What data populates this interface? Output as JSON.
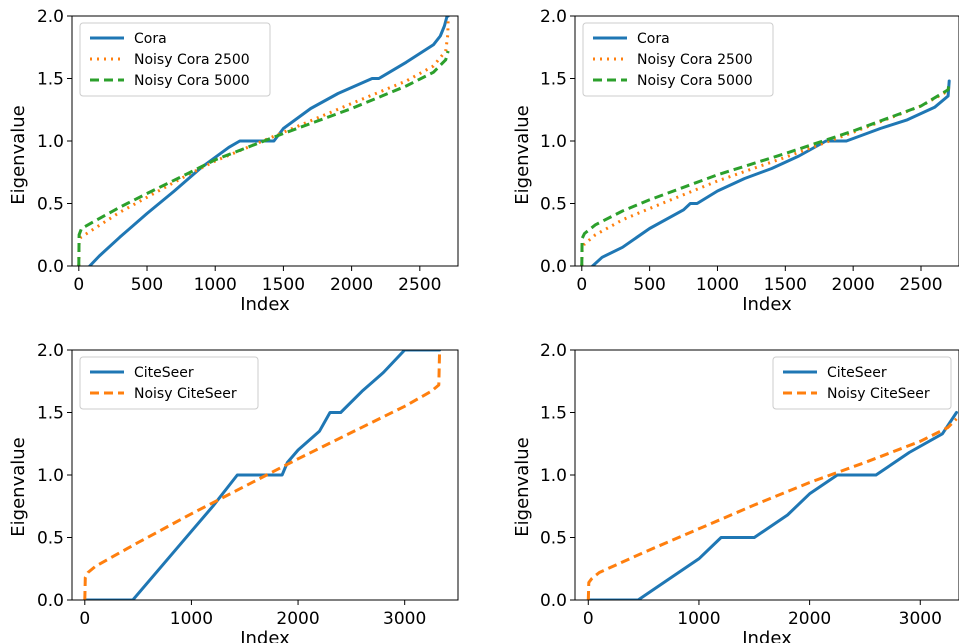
{
  "chart_data": [
    {
      "type": "line",
      "xlabel": "Index",
      "ylabel": "Eigenvalue",
      "xlim": [
        -50,
        2780
      ],
      "ylim": [
        0,
        2
      ],
      "xticks": [
        0,
        500,
        1000,
        1500,
        2000,
        2500
      ],
      "yticks": [
        0.0,
        0.5,
        1.0,
        1.5,
        2.0
      ],
      "xtick_labels": [
        "0",
        "500",
        "1000",
        "1500",
        "2000",
        "2500"
      ],
      "ytick_labels": [
        "0.0",
        "0.5",
        "1.0",
        "1.5",
        "2.0"
      ],
      "legend_position": "upper left",
      "series": [
        {
          "name": "Cora",
          "color": "#1f77b4",
          "style": "solid",
          "x": [
            80,
            150,
            300,
            500,
            700,
            900,
            1100,
            1180,
            1300,
            1430,
            1500,
            1700,
            1900,
            2150,
            2200,
            2400,
            2600,
            2650,
            2680,
            2700,
            2708
          ],
          "y": [
            0.0,
            0.08,
            0.23,
            0.42,
            0.6,
            0.79,
            0.95,
            1.0,
            1.0,
            1.0,
            1.1,
            1.26,
            1.38,
            1.5,
            1.5,
            1.63,
            1.77,
            1.84,
            1.92,
            2.0,
            2.0
          ]
        },
        {
          "name": "Noisy Cora 2500",
          "color": "#ff7f0e",
          "style": "dotted",
          "x": [
            0,
            2,
            15,
            100,
            300,
            500,
            800,
            1000,
            1500,
            2000,
            2400,
            2600,
            2690,
            2705,
            2708
          ],
          "y": [
            0.0,
            0.2,
            0.23,
            0.29,
            0.43,
            0.55,
            0.73,
            0.84,
            1.07,
            1.3,
            1.48,
            1.6,
            1.72,
            1.85,
            2.0
          ]
        },
        {
          "name": "Noisy Cora 5000",
          "color": "#2ca02c",
          "style": "dashed",
          "x": [
            0,
            2,
            20,
            100,
            300,
            500,
            800,
            1000,
            1500,
            2000,
            2400,
            2600,
            2690,
            2705,
            2708
          ],
          "y": [
            0.0,
            0.25,
            0.3,
            0.35,
            0.47,
            0.58,
            0.74,
            0.85,
            1.06,
            1.26,
            1.44,
            1.55,
            1.65,
            1.71,
            1.72
          ]
        }
      ]
    },
    {
      "type": "line",
      "xlabel": "Index",
      "ylabel": "Eigenvalue",
      "xlim": [
        -50,
        2780
      ],
      "ylim": [
        0,
        2
      ],
      "xticks": [
        0,
        500,
        1000,
        1500,
        2000,
        2500
      ],
      "yticks": [
        0.0,
        0.5,
        1.0,
        1.5,
        2.0
      ],
      "xtick_labels": [
        "0",
        "500",
        "1000",
        "1500",
        "2000",
        "2500"
      ],
      "ytick_labels": [
        "0.0",
        "0.5",
        "1.0",
        "1.5",
        "2.0"
      ],
      "legend_position": "upper left",
      "series": [
        {
          "name": "Cora",
          "color": "#1f77b4",
          "style": "solid",
          "x": [
            80,
            150,
            300,
            500,
            750,
            800,
            850,
            1000,
            1200,
            1400,
            1600,
            1800,
            1950,
            2000,
            2200,
            2400,
            2600,
            2700,
            2708
          ],
          "y": [
            0.0,
            0.07,
            0.15,
            0.3,
            0.45,
            0.5,
            0.5,
            0.6,
            0.7,
            0.78,
            0.88,
            1.0,
            1.0,
            1.02,
            1.1,
            1.17,
            1.27,
            1.36,
            1.48
          ]
        },
        {
          "name": "Noisy Cora 2500",
          "color": "#ff7f0e",
          "style": "dotted",
          "x": [
            0,
            2,
            15,
            100,
            300,
            500,
            1000,
            1500,
            2000,
            2500,
            2700,
            2708
          ],
          "y": [
            0.0,
            0.13,
            0.17,
            0.25,
            0.37,
            0.46,
            0.68,
            0.87,
            1.07,
            1.28,
            1.4,
            1.45
          ]
        },
        {
          "name": "Noisy Cora 5000",
          "color": "#2ca02c",
          "style": "dashed",
          "x": [
            0,
            2,
            20,
            100,
            300,
            500,
            1000,
            1500,
            2000,
            2500,
            2700,
            2708
          ],
          "y": [
            0.0,
            0.22,
            0.26,
            0.33,
            0.44,
            0.53,
            0.73,
            0.9,
            1.08,
            1.28,
            1.41,
            1.47
          ]
        }
      ]
    },
    {
      "type": "line",
      "xlabel": "Index",
      "ylabel": "Eigenvalue",
      "xlim": [
        -120,
        3500
      ],
      "ylim": [
        0,
        2
      ],
      "xticks": [
        0,
        1000,
        2000,
        3000
      ],
      "yticks": [
        0.0,
        0.5,
        1.0,
        1.5,
        2.0
      ],
      "xtick_labels": [
        "0",
        "1000",
        "2000",
        "3000"
      ],
      "ytick_labels": [
        "0.0",
        "0.5",
        "1.0",
        "1.5",
        "2.0"
      ],
      "legend_position": "upper left",
      "series": [
        {
          "name": "CiteSeer",
          "color": "#1f77b4",
          "style": "solid",
          "x": [
            0,
            450,
            700,
            1000,
            1200,
            1430,
            1500,
            1700,
            1850,
            1900,
            2000,
            2200,
            2300,
            2400,
            2600,
            2800,
            3000,
            3050,
            3327
          ],
          "y": [
            0.0,
            0.0,
            0.25,
            0.55,
            0.75,
            1.0,
            1.0,
            1.0,
            1.0,
            1.1,
            1.2,
            1.35,
            1.5,
            1.5,
            1.67,
            1.82,
            2.0,
            2.0,
            2.0
          ]
        },
        {
          "name": "Noisy CiteSeer",
          "color": "#ff7f0e",
          "style": "dashed",
          "x": [
            0,
            5,
            30,
            100,
            500,
            1000,
            1500,
            2000,
            2500,
            3000,
            3250,
            3320,
            3327
          ],
          "y": [
            0.0,
            0.18,
            0.22,
            0.27,
            0.46,
            0.69,
            0.91,
            1.13,
            1.34,
            1.55,
            1.67,
            1.72,
            2.0
          ]
        }
      ]
    },
    {
      "type": "line",
      "xlabel": "Index",
      "ylabel": "Eigenvalue",
      "xlim": [
        -120,
        3350
      ],
      "ylim": [
        0,
        2
      ],
      "xticks": [
        0,
        1000,
        2000,
        3000
      ],
      "yticks": [
        0.0,
        0.5,
        1.0,
        1.5,
        2.0
      ],
      "xtick_labels": [
        "0",
        "1000",
        "2000",
        "3000"
      ],
      "ytick_labels": [
        "0.0",
        "0.5",
        "1.0",
        "1.5",
        "2.0"
      ],
      "legend_position": "upper right",
      "series": [
        {
          "name": "CiteSeer",
          "color": "#1f77b4",
          "style": "solid",
          "x": [
            0,
            450,
            700,
            1000,
            1200,
            1500,
            1800,
            2000,
            2250,
            2300,
            2600,
            2900,
            3200,
            3327
          ],
          "y": [
            0.0,
            0.0,
            0.15,
            0.33,
            0.5,
            0.5,
            0.68,
            0.85,
            1.0,
            1.0,
            1.0,
            1.18,
            1.33,
            1.5
          ]
        },
        {
          "name": "Noisy CiteSeer",
          "color": "#ff7f0e",
          "style": "dashed",
          "x": [
            0,
            5,
            30,
            100,
            500,
            1000,
            1500,
            2000,
            2500,
            3000,
            3250,
            3327
          ],
          "y": [
            0.0,
            0.14,
            0.17,
            0.22,
            0.38,
            0.57,
            0.76,
            0.94,
            1.1,
            1.27,
            1.38,
            1.45
          ]
        }
      ]
    }
  ]
}
